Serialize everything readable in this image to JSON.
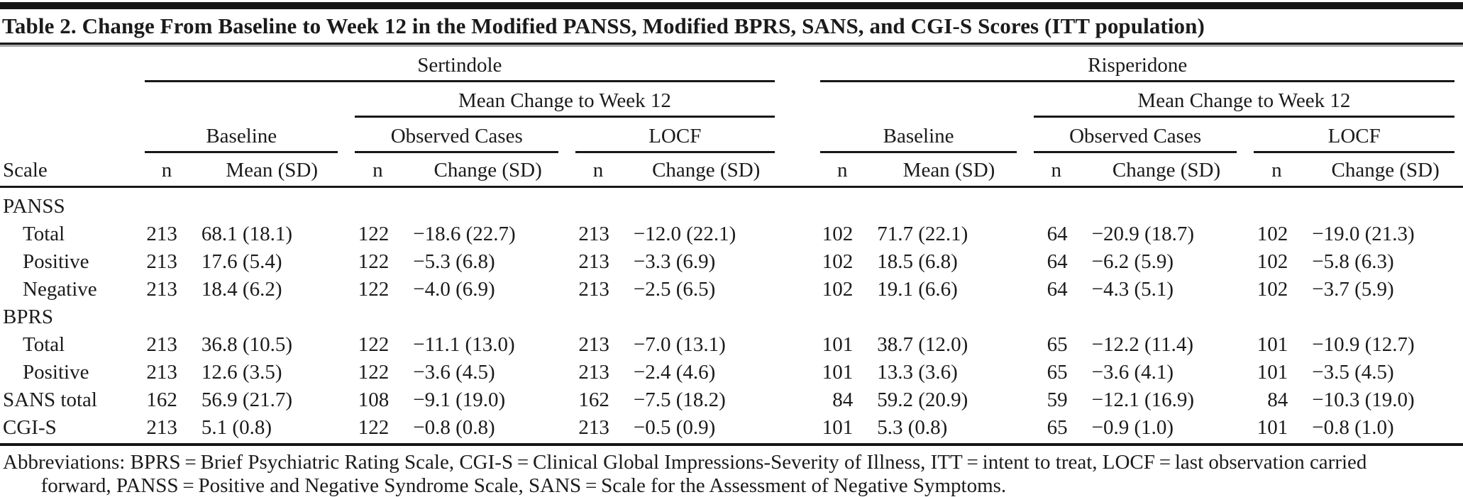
{
  "title": "Table 2. Change From Baseline to Week 12 in the Modified PANSS, Modified BPRS, SANS, and CGI-S Scores (ITT population)",
  "table": {
    "group_headers": [
      "Sertindole",
      "Risperidone"
    ],
    "subgroup_header": "Mean Change to Week 12",
    "section_headers": {
      "baseline": "Baseline",
      "observed_cases": "Observed Cases",
      "locf": "LOCF"
    },
    "column_headers": {
      "scale": "Scale",
      "n": "n",
      "mean_sd": "Mean (SD)",
      "change_sd": "Change (SD)"
    },
    "rows": [
      {
        "label": "PANSS",
        "indent": false,
        "cells": []
      },
      {
        "label": "Total",
        "indent": true,
        "cells": [
          "213",
          "68.1 (18.1)",
          "122",
          "−18.6 (22.7)",
          "213",
          "−12.0 (22.1)",
          "102",
          "71.7 (22.1)",
          "64",
          "−20.9 (18.7)",
          "102",
          "−19.0 (21.3)"
        ]
      },
      {
        "label": "Positive",
        "indent": true,
        "cells": [
          "213",
          "17.6 (5.4)",
          "122",
          "−5.3 (6.8)",
          "213",
          "−3.3 (6.9)",
          "102",
          "18.5 (6.8)",
          "64",
          "−6.2 (5.9)",
          "102",
          "−5.8 (6.3)"
        ]
      },
      {
        "label": "Negative",
        "indent": true,
        "cells": [
          "213",
          "18.4 (6.2)",
          "122",
          "−4.0 (6.9)",
          "213",
          "−2.5 (6.5)",
          "102",
          "19.1 (6.6)",
          "64",
          "−4.3 (5.1)",
          "102",
          "−3.7 (5.9)"
        ]
      },
      {
        "label": "BPRS",
        "indent": false,
        "cells": []
      },
      {
        "label": "Total",
        "indent": true,
        "cells": [
          "213",
          "36.8 (10.5)",
          "122",
          "−11.1 (13.0)",
          "213",
          "−7.0 (13.1)",
          "101",
          "38.7 (12.0)",
          "65",
          "−12.2 (11.4)",
          "101",
          "−10.9 (12.7)"
        ]
      },
      {
        "label": "Positive",
        "indent": true,
        "cells": [
          "213",
          "12.6 (3.5)",
          "122",
          "−3.6 (4.5)",
          "213",
          "−2.4 (4.6)",
          "101",
          "13.3 (3.6)",
          "65",
          "−3.6 (4.1)",
          "101",
          "−3.5 (4.5)"
        ]
      },
      {
        "label": "SANS total",
        "indent": false,
        "cells": [
          "162",
          "56.9 (21.7)",
          "108",
          "−9.1 (19.0)",
          "162",
          "−7.5 (18.2)",
          "84",
          "59.2 (20.9)",
          "59",
          "−12.1 (16.9)",
          "84",
          "−10.3 (19.0)"
        ]
      },
      {
        "label": "CGI-S",
        "indent": false,
        "cells": [
          "213",
          "5.1 (0.8)",
          "122",
          "−0.8 (0.8)",
          "213",
          "−0.5 (0.9)",
          "101",
          "5.3 (0.8)",
          "65",
          "−0.9 (1.0)",
          "101",
          "−0.8 (1.0)"
        ]
      }
    ]
  },
  "footnote": "Abbreviations: BPRS = Brief Psychiatric Rating Scale, CGI-S = Clinical Global Impressions-Severity of Illness, ITT = intent to treat, LOCF = last observation carried forward, PANSS = Positive and Negative Syndrome Scale, SANS = Scale for the Assessment of Negative Symptoms."
}
